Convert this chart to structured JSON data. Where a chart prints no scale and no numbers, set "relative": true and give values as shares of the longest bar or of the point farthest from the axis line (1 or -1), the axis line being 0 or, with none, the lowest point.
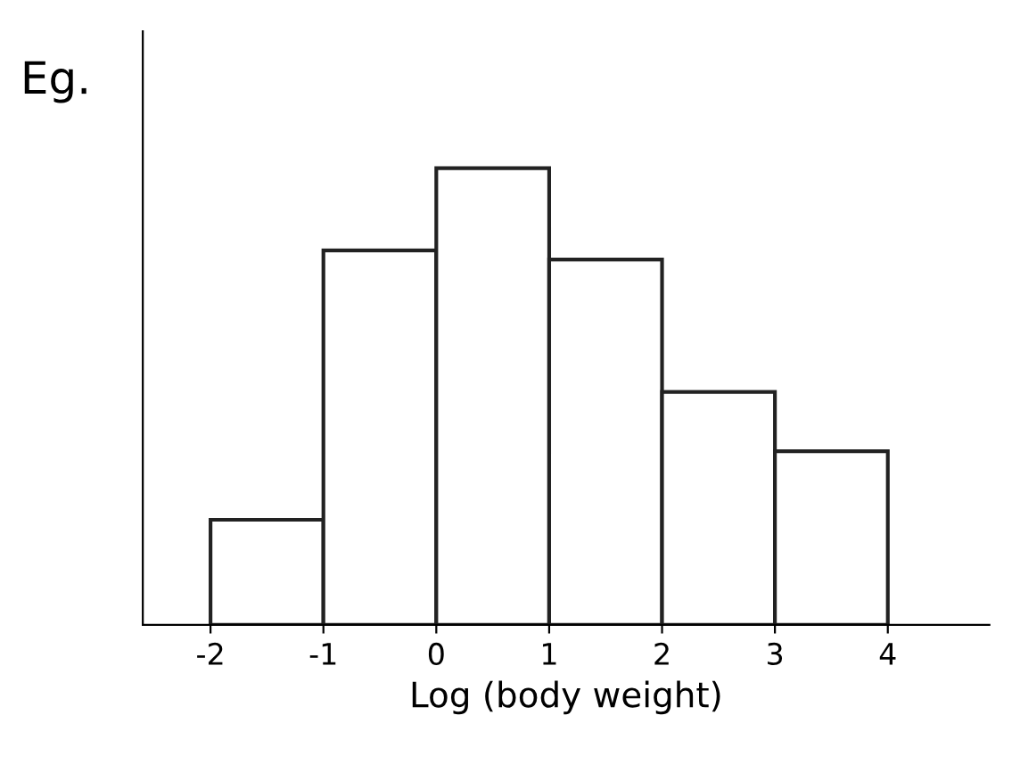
{
  "chart_data": {
    "type": "bar",
    "relative": true,
    "x": [
      -1.5,
      -0.5,
      0.5,
      1.5,
      2.5,
      3.5
    ],
    "values": [
      0.23,
      0.82,
      1,
      0.8,
      0.51,
      0.38
    ],
    "color": "#ffffff",
    "xlim": [
      -2.6,
      4.9
    ],
    "xticks": [
      -2,
      -1,
      0,
      1,
      2,
      3,
      4
    ],
    "xlabel": "Log (body weight)",
    "annotations": [
      "Eg."
    ],
    "tick_labels": "x"
  }
}
